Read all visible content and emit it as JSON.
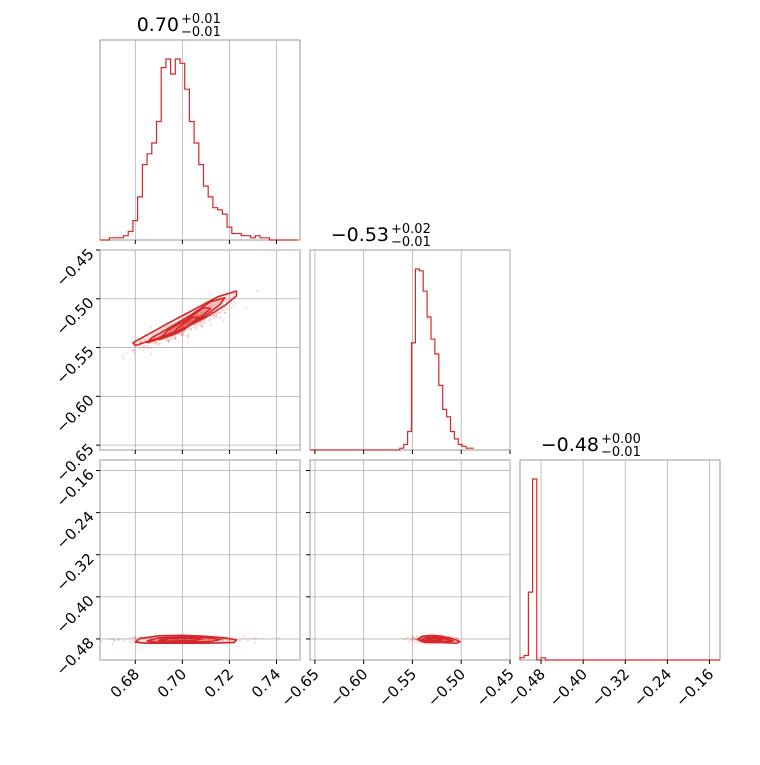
{
  "chart_data": {
    "type": "corner",
    "color": "#d62728",
    "panel_titles": [
      {
        "value": "0.70",
        "upper": "+0.01",
        "lower": "−0.01"
      },
      {
        "value": "−0.53",
        "upper": "+0.02",
        "lower": "−0.01"
      },
      {
        "value": "−0.48",
        "upper": "+0.00",
        "lower": "−0.01"
      }
    ],
    "params": [
      {
        "range": [
          0.665,
          0.75
        ],
        "ticks": [
          0.68,
          0.7,
          0.72,
          0.74
        ],
        "tick_labels": [
          "0.68",
          "0.70",
          "0.72",
          "0.74"
        ]
      },
      {
        "range": [
          -0.655,
          -0.45
        ],
        "ticks": [
          -0.65,
          -0.6,
          -0.55,
          -0.5,
          -0.45
        ],
        "tick_labels": [
          "−0.65",
          "−0.60",
          "−0.55",
          "−0.50",
          "−0.45"
        ]
      },
      {
        "range": [
          -0.52,
          -0.14
        ],
        "ticks": [
          -0.48,
          -0.4,
          -0.32,
          -0.24,
          -0.16
        ],
        "tick_labels": [
          "−0.48",
          "−0.40",
          "−0.32",
          "−0.24",
          "−0.16"
        ]
      }
    ],
    "histograms": [
      {
        "edges_start": 0.665,
        "bin_width": 0.002,
        "counts": [
          0,
          0,
          1,
          1,
          1,
          2,
          4,
          9,
          20,
          35,
          40,
          45,
          55,
          80,
          84,
          77,
          84,
          82,
          70,
          55,
          45,
          35,
          25,
          20,
          15,
          14,
          12,
          6,
          3,
          3,
          2,
          2,
          1,
          2,
          1,
          1,
          0,
          0,
          0,
          0,
          0,
          0
        ]
      },
      {
        "edges_start": -0.655,
        "bin_width": 0.004,
        "counts": [
          0,
          0,
          0,
          0,
          0,
          0,
          0,
          0,
          0,
          0,
          0,
          0,
          0,
          0,
          0,
          0,
          0,
          0,
          0,
          0,
          0,
          0,
          0,
          1,
          3,
          10,
          58,
          98,
          97,
          86,
          72,
          60,
          52,
          35,
          22,
          18,
          10,
          6,
          3,
          2,
          1,
          1
        ]
      },
      {
        "edges_start": -0.52,
        "bin_width": 0.008,
        "counts": [
          1,
          2,
          30,
          80,
          0,
          1,
          0,
          0,
          0,
          0,
          0,
          0,
          0,
          0,
          0,
          0,
          0,
          0,
          0,
          0,
          0,
          0,
          0,
          0,
          0,
          0,
          0,
          0,
          0,
          0,
          0,
          0,
          0,
          0,
          0,
          0,
          0,
          0,
          0,
          0,
          0,
          0,
          0,
          0,
          0,
          0,
          0,
          0
        ]
      }
    ],
    "pair_plots": [
      {
        "x": 0,
        "y": 1,
        "direction": [
          0.0225,
          0.027
        ],
        "center": [
          0.7,
          -0.53
        ],
        "spread": [
          0.006,
          0.003
        ],
        "levels": [
          [
            [
              0.68,
              -0.548
            ],
            [
              0.69,
              -0.54
            ],
            [
              0.7,
              -0.531
            ],
            [
              0.71,
              -0.519
            ],
            [
              0.718,
              -0.507
            ],
            [
              0.723,
              -0.497
            ],
            [
              0.723,
              -0.492
            ],
            [
              0.715,
              -0.498
            ],
            [
              0.705,
              -0.511
            ],
            [
              0.694,
              -0.525
            ],
            [
              0.685,
              -0.537
            ],
            [
              0.679,
              -0.545
            ]
          ],
          [
            [
              0.685,
              -0.545
            ],
            [
              0.694,
              -0.538
            ],
            [
              0.702,
              -0.529
            ],
            [
              0.71,
              -0.517
            ],
            [
              0.716,
              -0.506
            ],
            [
              0.718,
              -0.499
            ],
            [
              0.712,
              -0.503
            ],
            [
              0.704,
              -0.516
            ],
            [
              0.695,
              -0.529
            ],
            [
              0.687,
              -0.54
            ]
          ],
          [
            [
              0.69,
              -0.542
            ],
            [
              0.698,
              -0.535
            ],
            [
              0.706,
              -0.523
            ],
            [
              0.712,
              -0.51
            ],
            [
              0.709,
              -0.509
            ],
            [
              0.702,
              -0.521
            ],
            [
              0.694,
              -0.532
            ]
          ],
          [
            [
              0.695,
              -0.538
            ],
            [
              0.701,
              -0.531
            ],
            [
              0.707,
              -0.519
            ],
            [
              0.704,
              -0.519
            ],
            [
              0.698,
              -0.53
            ]
          ]
        ]
      },
      {
        "x": 0,
        "y": 2,
        "center": [
          0.7,
          -0.481
        ],
        "spread": [
          0.01,
          0.004
        ],
        "levels": [
          [
            [
              0.68,
              -0.486
            ],
            [
              0.682,
              -0.479
            ],
            [
              0.69,
              -0.474
            ],
            [
              0.7,
              -0.473
            ],
            [
              0.71,
              -0.475
            ],
            [
              0.718,
              -0.478
            ],
            [
              0.723,
              -0.482
            ],
            [
              0.722,
              -0.487
            ],
            [
              0.71,
              -0.488
            ],
            [
              0.695,
              -0.488
            ],
            [
              0.684,
              -0.488
            ]
          ],
          [
            [
              0.685,
              -0.484
            ],
            [
              0.69,
              -0.478
            ],
            [
              0.7,
              -0.476
            ],
            [
              0.71,
              -0.477
            ],
            [
              0.716,
              -0.481
            ],
            [
              0.712,
              -0.485
            ],
            [
              0.7,
              -0.486
            ],
            [
              0.688,
              -0.486
            ]
          ],
          [
            [
              0.69,
              -0.483
            ],
            [
              0.695,
              -0.479
            ],
            [
              0.702,
              -0.478
            ],
            [
              0.708,
              -0.48
            ],
            [
              0.705,
              -0.483
            ],
            [
              0.696,
              -0.484
            ]
          ]
        ]
      },
      {
        "x": 1,
        "y": 2,
        "center": [
          -0.528,
          -0.481
        ],
        "spread": [
          0.008,
          0.004
        ],
        "levels": [
          [
            [
              -0.545,
              -0.481
            ],
            [
              -0.54,
              -0.475
            ],
            [
              -0.53,
              -0.473
            ],
            [
              -0.52,
              -0.475
            ],
            [
              -0.51,
              -0.479
            ],
            [
              -0.501,
              -0.485
            ],
            [
              -0.505,
              -0.488
            ],
            [
              -0.52,
              -0.487
            ],
            [
              -0.537,
              -0.487
            ]
          ],
          [
            [
              -0.541,
              -0.481
            ],
            [
              -0.535,
              -0.477
            ],
            [
              -0.525,
              -0.476
            ],
            [
              -0.515,
              -0.48
            ],
            [
              -0.508,
              -0.484
            ],
            [
              -0.52,
              -0.485
            ],
            [
              -0.535,
              -0.485
            ]
          ],
          [
            [
              -0.536,
              -0.481
            ],
            [
              -0.528,
              -0.478
            ],
            [
              -0.518,
              -0.48
            ],
            [
              -0.522,
              -0.483
            ],
            [
              -0.532,
              -0.483
            ]
          ]
        ]
      }
    ]
  }
}
